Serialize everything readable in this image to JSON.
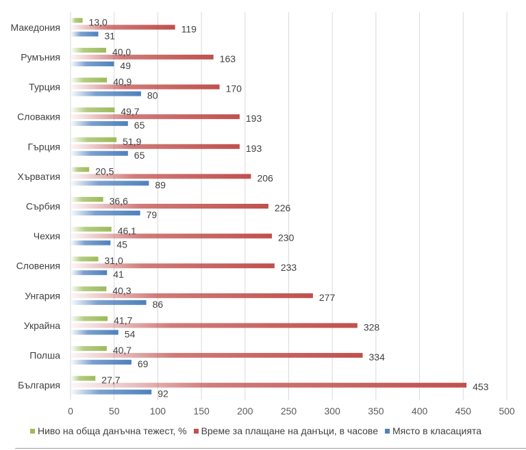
{
  "chart_data": {
    "type": "bar",
    "orientation": "horizontal",
    "title": "",
    "xlabel": "",
    "ylabel": "",
    "xlim": [
      0,
      500
    ],
    "x_ticks": [
      "0",
      "50",
      "100",
      "150",
      "200",
      "250",
      "300",
      "350",
      "400",
      "450",
      "500"
    ],
    "grid": true,
    "legend_position": "bottom",
    "categories": [
      "Македония",
      "Румъния",
      "Турция",
      "Словакия",
      "Гърция",
      "Хърватия",
      "Сърбия",
      "Чехия",
      "Словения",
      "Унгария",
      "Украйна",
      "Полша",
      "България"
    ],
    "series": [
      {
        "name": "Ниво на обща данъчна тежест, %",
        "color": "#9bbb59",
        "values": [
          13.0,
          40.0,
          40.9,
          49.7,
          51.9,
          20.5,
          36.6,
          46.1,
          31.0,
          40.3,
          41.7,
          40.7,
          27.7
        ],
        "labels": [
          "13,0",
          "40,0",
          "40,9",
          "49,7",
          "51,9",
          "20,5",
          "36,6",
          "46,1",
          "31,0",
          "40,3",
          "41,7",
          "40,7",
          "27,7"
        ]
      },
      {
        "name": "Време за плащане на данъци, в часове",
        "color": "#c0504d",
        "values": [
          119,
          163,
          170,
          193,
          193,
          206,
          226,
          230,
          233,
          277,
          328,
          334,
          453
        ],
        "labels": [
          "119",
          "163",
          "170",
          "193",
          "193",
          "206",
          "226",
          "230",
          "233",
          "277",
          "328",
          "334",
          "453"
        ]
      },
      {
        "name": "Място в класацията",
        "color": "#4f81bd",
        "values": [
          31,
          49,
          80,
          65,
          65,
          89,
          79,
          45,
          41,
          86,
          54,
          69,
          92
        ],
        "labels": [
          "31",
          "49",
          "80",
          "65",
          "65",
          "89",
          "79",
          "45",
          "41",
          "86",
          "54",
          "69",
          "92"
        ]
      }
    ]
  }
}
